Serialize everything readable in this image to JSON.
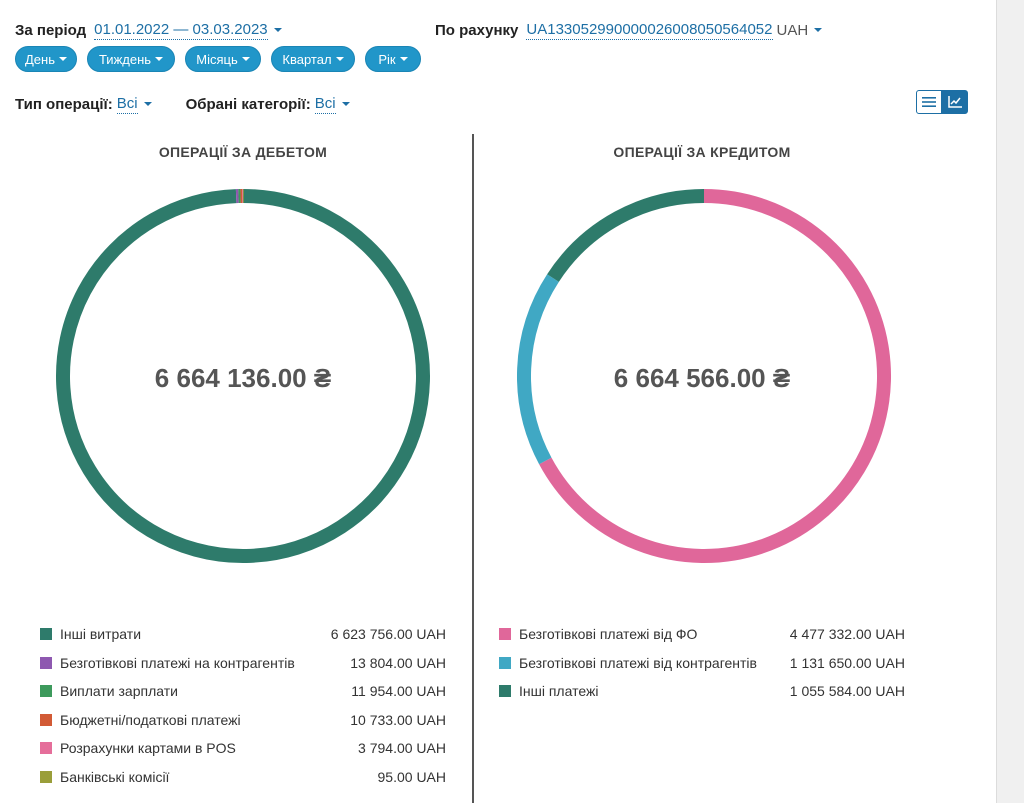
{
  "filters": {
    "period_label": "За період",
    "period_value": "01.01.2022 — 03.03.2023",
    "account_label": "По рахунку",
    "account_value": "UA133052990000026008050564052",
    "account_currency": "UAH",
    "op_type_label": "Тип операції:",
    "op_type_value": "Всі",
    "categories_label": "Обрані категорії:",
    "categories_value": "Всі"
  },
  "period_buttons": [
    "День",
    "Тиждень",
    "Місяць",
    "Квартал",
    "Рік"
  ],
  "view_toggle": {
    "list_icon": "list-icon",
    "chart_icon": "line-chart-icon",
    "active": "chart"
  },
  "chart_data": [
    {
      "type": "pie",
      "title": "ОПЕРАЦІЇ ЗА ДЕБЕТОМ",
      "center_total": "6 664 136.00 ₴",
      "categories": [
        "Інші витрати",
        "Безготівкові платежі на контрагентів",
        "Виплати зарплати",
        "Бюджетні/податкові платежі",
        "Розрахунки картами в POS",
        "Банківські комісії"
      ],
      "values": [
        6623756.0,
        13804.0,
        11954.0,
        10733.0,
        3794.0,
        95.0
      ],
      "value_labels": [
        "6 623 756.00 UAH",
        "13 804.00 UAH",
        "11 954.00 UAH",
        "10 733.00 UAH",
        "3 794.00 UAH",
        "95.00 UAH"
      ],
      "colors": [
        "#2e7b6b",
        "#8e58b0",
        "#3d9a5c",
        "#d25a35",
        "#e56e9a",
        "#9a9e3a"
      ]
    },
    {
      "type": "pie",
      "title": "ОПЕРАЦІЇ ЗА КРЕДИТОМ",
      "center_total": "6 664 566.00 ₴",
      "categories": [
        "Безготівкові платежі від ФО",
        "Безготівкові платежі від контрагентів",
        "Інші платежі"
      ],
      "values": [
        4477332.0,
        1131650.0,
        1055584.0
      ],
      "value_labels": [
        "4 477 332.00 UAH",
        "1 131 650.00 UAH",
        "1 055 584.00 UAH"
      ],
      "colors": [
        "#e0679a",
        "#40a8c4",
        "#2e7b6b"
      ]
    }
  ]
}
